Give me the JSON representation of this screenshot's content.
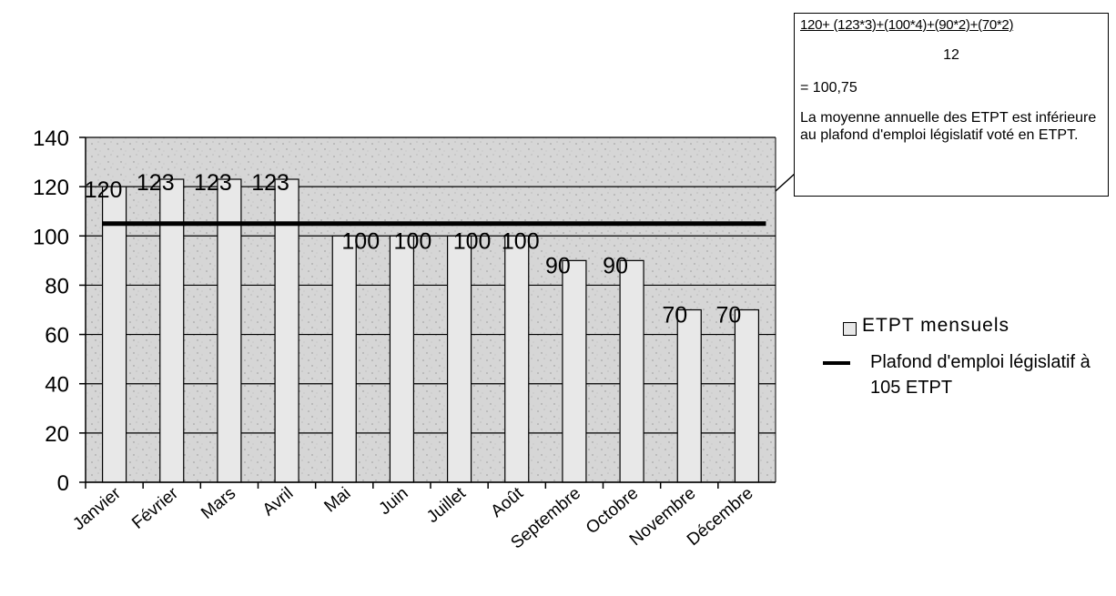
{
  "chart_data": {
    "type": "bar",
    "categories": [
      "Janvier",
      "Février",
      "Mars",
      "Avril",
      "Mai",
      "Juin",
      "Juillet",
      "Août",
      "Septembre",
      "Octobre",
      "Novembre",
      "Décembre"
    ],
    "series": [
      {
        "name": "ETPT mensuels",
        "type": "bar",
        "values": [
          120,
          123,
          123,
          123,
          100,
          100,
          100,
          100,
          90,
          90,
          70,
          70
        ]
      },
      {
        "name": "Plafond d'emploi législatif à 105 ETPT",
        "type": "line",
        "values": [
          105,
          105,
          105,
          105,
          105,
          105,
          105,
          105,
          105,
          105,
          105,
          105
        ]
      }
    ],
    "data_labels": [
      "120",
      "123",
      "123",
      "123",
      "100",
      "100",
      "100",
      "100",
      "90",
      "90",
      "70",
      "70"
    ],
    "yticks": [
      "0",
      "20",
      "40",
      "60",
      "80",
      "100",
      "120",
      "140"
    ],
    "ylim": [
      0,
      140
    ],
    "grid": true,
    "legend_position": "right",
    "title": "",
    "xlabel": "",
    "ylabel": ""
  },
  "annotation": {
    "formula_numerator": "120+ (123*3)+(100*4)+(90*2)+(70*2)",
    "formula_denominator": "12",
    "result": "= 100,75",
    "note": "La moyenne annuelle des ETPT est inférieure au plafond d'emploi législatif voté en ETPT."
  },
  "legend": {
    "bars_label": "ETPT mensuels",
    "line_label": "Plafond d'emploi législatif à 105 ETPT"
  },
  "colors": {
    "plot_background": "#d9d9d9",
    "bar_fill": "#e8e8e8",
    "line": "#000000",
    "grid": "#000000"
  }
}
